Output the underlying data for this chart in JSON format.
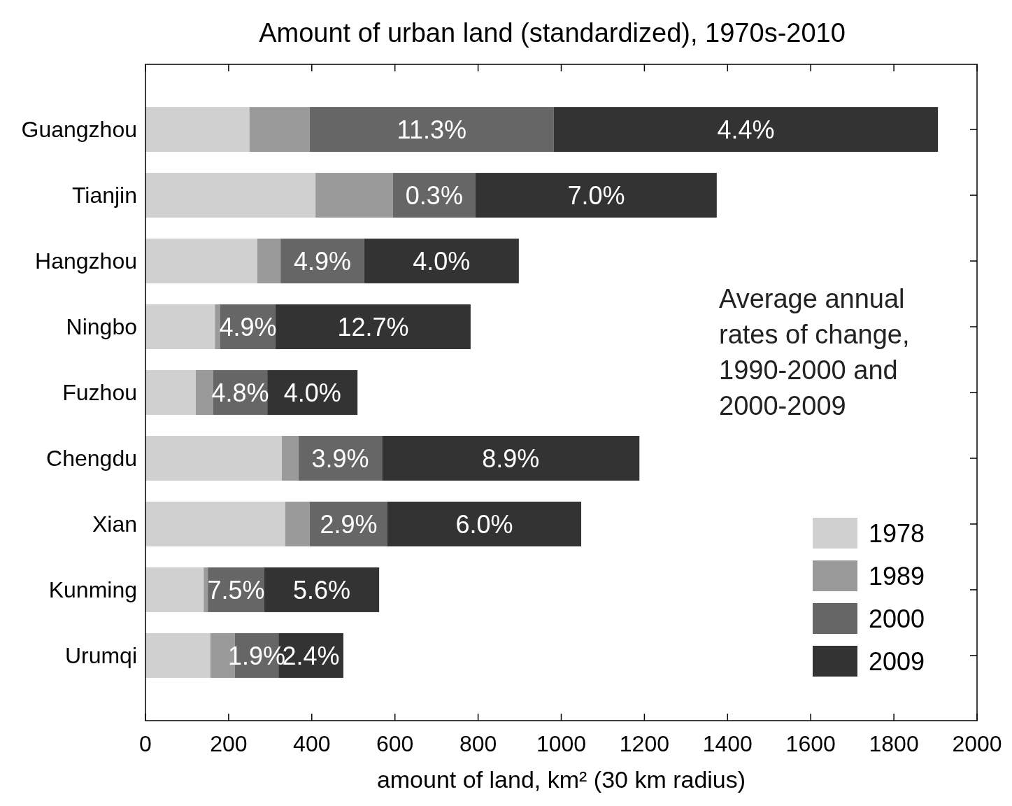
{
  "chart_data": {
    "type": "bar",
    "orientation": "horizontal",
    "stacked": true,
    "title": "Amount of urban land (standardized), 1970s-2010",
    "xlabel": "amount of land, km² (30 km radius)",
    "categories": [
      "Guangzhou",
      "Tianjin",
      "Hangzhou",
      "Ningbo",
      "Fuzhou",
      "Chengdu",
      "Xian",
      "Kunming",
      "Urumqi"
    ],
    "series": [
      {
        "name": "1978",
        "color": "#d0d0d0",
        "values": [
          250,
          409,
          269,
          167,
          121,
          328,
          336,
          140,
          156
        ]
      },
      {
        "name": "1989",
        "color": "#9a9a9a",
        "values": [
          145,
          186,
          56,
          13,
          42,
          40,
          59,
          10,
          59
        ]
      },
      {
        "name": "2000",
        "color": "#666666",
        "values": [
          587,
          199,
          201,
          133,
          130,
          201,
          187,
          136,
          105
        ]
      },
      {
        "name": "2009",
        "color": "#333333",
        "values": [
          924,
          580,
          372,
          469,
          217,
          619,
          466,
          276,
          156
        ]
      }
    ],
    "xlim": [
      0,
      2000
    ],
    "xticks": [
      0,
      200,
      400,
      600,
      800,
      1000,
      1200,
      1400,
      1600,
      1800,
      2000
    ],
    "annotations": [
      "Average annual rates of change, 1990-2000 and 2000-2009",
      "11.3%",
      "4.4%",
      "0.3%",
      "7.0%",
      "4.9%",
      "4.0%",
      "4.9%",
      "12.7%",
      "4.8%",
      "4.0%",
      "3.9%",
      "8.9%",
      "2.9%",
      "6.0%",
      "7.5%",
      "5.6%",
      "1.9%",
      "2.4%"
    ],
    "legend": "bottom right",
    "grid": false
  }
}
